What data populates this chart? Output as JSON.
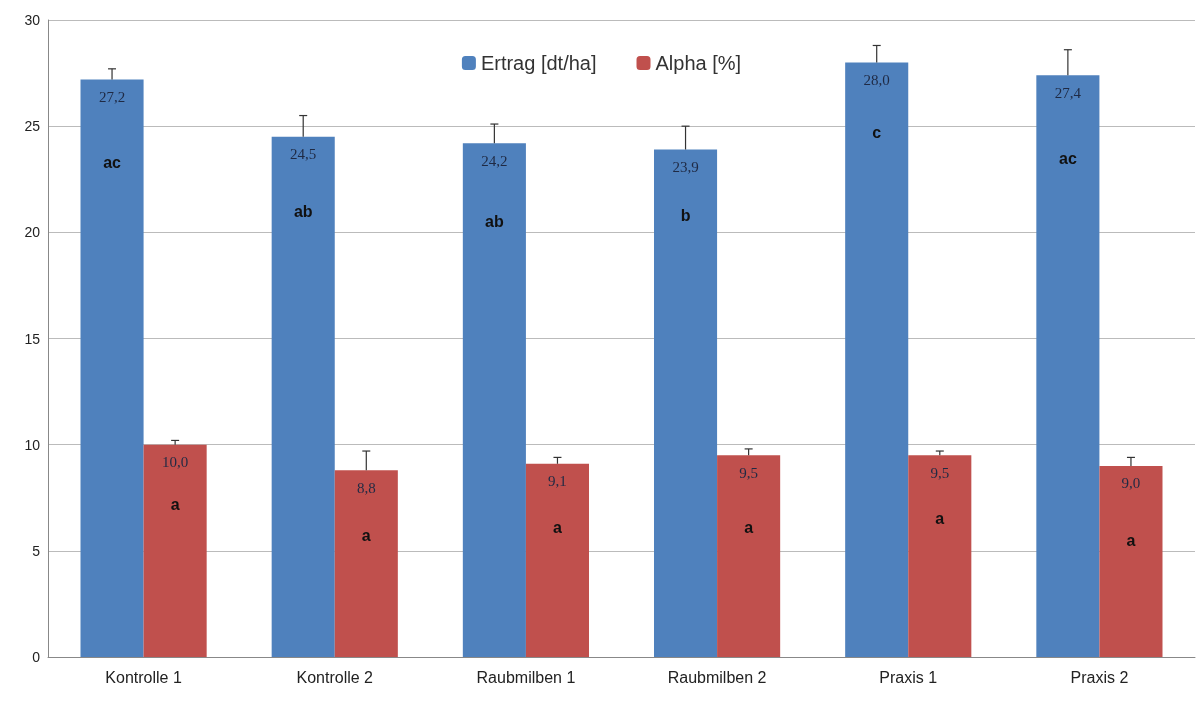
{
  "chart_data": {
    "type": "bar",
    "categories": [
      "Kontrolle 1",
      "Kontrolle 2",
      "Raubmilben 1",
      "Raubmilben 2",
      "Praxis 1",
      "Praxis 2"
    ],
    "series": [
      {
        "name": "Ertrag [dt/ha]",
        "color": "#4f81bd",
        "values": [
          27.2,
          24.5,
          24.2,
          23.9,
          28.0,
          27.4
        ],
        "errors": [
          [
            27.2,
            27.7
          ],
          [
            24.5,
            25.5
          ],
          [
            24.2,
            25.1
          ],
          [
            23.9,
            25.0
          ],
          [
            28.0,
            28.8
          ],
          [
            27.4,
            28.6
          ]
        ],
        "value_labels": [
          "27,2",
          "24,5",
          "24,2",
          "23,9",
          "28,0",
          "27,4"
        ]
      },
      {
        "name": "Alpha [%]",
        "color": "#c0504d",
        "values": [
          10.0,
          8.8,
          9.1,
          9.5,
          9.5,
          9.0
        ],
        "errors": [
          [
            10.0,
            10.2
          ],
          [
            8.8,
            9.7
          ],
          [
            9.1,
            9.4
          ],
          [
            9.5,
            9.8
          ],
          [
            9.5,
            9.7
          ],
          [
            9.0,
            9.4
          ]
        ],
        "value_labels": [
          "10,0",
          "8,8",
          "9,1",
          "9,5",
          "9,5",
          "9,0"
        ]
      }
    ],
    "annotations": [
      {
        "text": "ac",
        "x": "Kontrolle 1",
        "y": 23.3
      },
      {
        "text": "ab",
        "x": "Kontrolle 2",
        "y": 21.0
      },
      {
        "text": "ab",
        "x": "Raubmilben 1",
        "y": 20.5
      },
      {
        "text": "b",
        "x": "Raubmilben 2",
        "y": 20.8
      },
      {
        "text": "c",
        "x": "Praxis 1",
        "y": 24.7
      },
      {
        "text": "ac",
        "x": "Praxis 2",
        "y": 23.5
      },
      {
        "text": "a",
        "x": "Kontrolle 1",
        "y": 7.2
      },
      {
        "text": "a",
        "x": "Kontrolle 2",
        "y": 5.7
      },
      {
        "text": "a",
        "x": "Raubmilben 1",
        "y": 6.1
      },
      {
        "text": "a",
        "x": "Raubmilben 2",
        "y": 6.1
      },
      {
        "text": "a",
        "x": "Praxis 1",
        "y": 6.5
      },
      {
        "text": "a",
        "x": "Praxis 2",
        "y": 5.5
      }
    ],
    "ylim": [
      0,
      30
    ],
    "yticks": [
      0,
      5,
      10,
      15,
      20,
      25,
      30
    ],
    "grid": "y",
    "legend": "top"
  }
}
